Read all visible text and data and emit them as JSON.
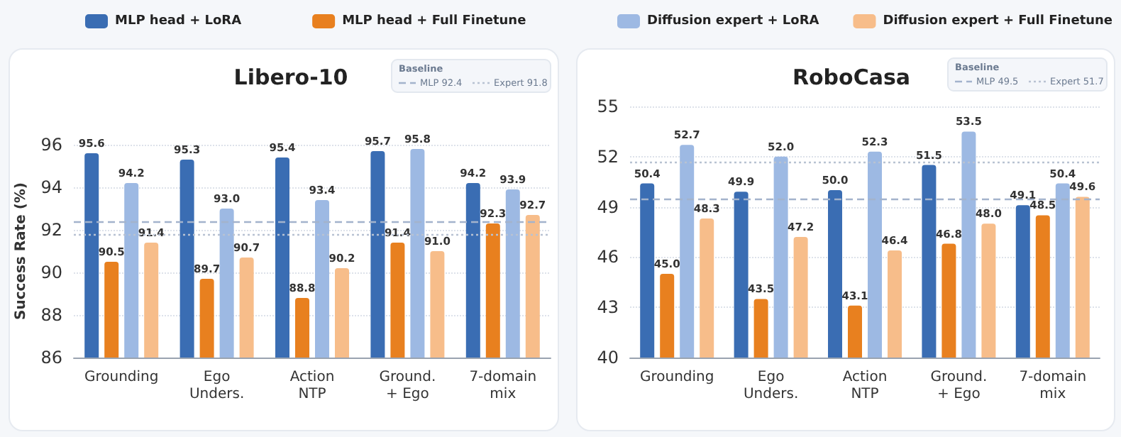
{
  "chart_data": [
    {
      "type": "bar",
      "title": "Libero-10",
      "ylabel": "Success Rate (%)",
      "categories": [
        "Grounding",
        "Ego\nUnders.",
        "Action\nNTP",
        "Ground.\n+ Ego",
        "7-domain\nmix"
      ],
      "series": [
        {
          "name": "MLP head + LoRA",
          "color": "#3a6db3",
          "values": [
            95.6,
            95.3,
            95.4,
            95.7,
            94.2
          ],
          "value_labels": [
            "95.6",
            "95.3",
            "95.4",
            "95.7",
            "94.2"
          ]
        },
        {
          "name": "MLP head + Full Finetune",
          "color": "#e8801f",
          "values": [
            90.5,
            89.7,
            88.8,
            91.4,
            92.3
          ],
          "value_labels": [
            "90.5",
            "89.7",
            "88.8",
            "91.4",
            "92.3"
          ]
        },
        {
          "color": "#9db9e3",
          "values": [
            94.2,
            93.0,
            93.4,
            95.8,
            93.9
          ],
          "value_labels": [
            "94.2",
            "93.0",
            "93.4",
            "95.8",
            "93.9"
          ]
        },
        {
          "color": "#f7bd8a",
          "values": [
            91.4,
            90.7,
            90.2,
            91.0,
            92.7
          ],
          "value_labels": [
            "91.4",
            "90.7",
            "90.2",
            "91.0",
            "92.7"
          ]
        }
      ],
      "ylim": [
        86,
        96
      ],
      "yticks": [
        86,
        88,
        90,
        92,
        94,
        96
      ],
      "grid": "y",
      "legend": "top",
      "annotations": [
        "Baseline"
      ],
      "ref_lines": [
        {
          "axis": "y",
          "value": 92.4,
          "label": "MLP 92.4",
          "color": "#a3b3cc",
          "line_style": "dashed"
        },
        {
          "axis": "y",
          "value": 91.8,
          "label": "Expert 91.8",
          "color": "#b8c2d2",
          "line_style": "dotted"
        }
      ]
    },
    {
      "type": "bar",
      "title": "RoboCasa",
      "categories": [
        "Grounding",
        "Ego\nUnders.",
        "Action\nNTP",
        "Ground.\n+ Ego",
        "7-domain\nmix"
      ],
      "series": [
        {
          "color": "#3a6db3",
          "values": [
            50.4,
            49.9,
            50.0,
            51.5,
            49.1
          ],
          "value_labels": [
            "50.4",
            "49.9",
            "50.0",
            "51.5",
            "49.1"
          ]
        },
        {
          "color": "#e8801f",
          "values": [
            45.0,
            43.5,
            43.1,
            46.8,
            48.5
          ],
          "value_labels": [
            "45.0",
            "43.5",
            "43.1",
            "46.8",
            "48.5"
          ]
        },
        {
          "name": "Diffusion expert + LoRA",
          "color": "#9db9e3",
          "values": [
            52.7,
            52.0,
            52.3,
            53.5,
            50.4
          ],
          "value_labels": [
            "52.7",
            "52.0",
            "52.3",
            "53.5",
            "50.4"
          ]
        },
        {
          "name": "Diffusion expert + Full Finetune",
          "color": "#f7bd8a",
          "values": [
            48.3,
            47.2,
            46.4,
            48.0,
            49.6
          ],
          "value_labels": [
            "48.3",
            "47.2",
            "46.4",
            "48.0",
            "49.6"
          ]
        }
      ],
      "ylim": [
        40,
        55
      ],
      "yticks": [
        40,
        43,
        46,
        49,
        52,
        55
      ],
      "grid": "y",
      "legend": "top",
      "annotations": [
        "Baseline"
      ],
      "ref_lines": [
        {
          "axis": "y",
          "value": 49.5,
          "label": "MLP 49.5",
          "color": "#a3b3cc",
          "line_style": "dashed"
        },
        {
          "axis": "y",
          "value": 51.7,
          "label": "Expert 51.7",
          "color": "#b8c2d2",
          "line_style": "dotted"
        }
      ]
    }
  ]
}
